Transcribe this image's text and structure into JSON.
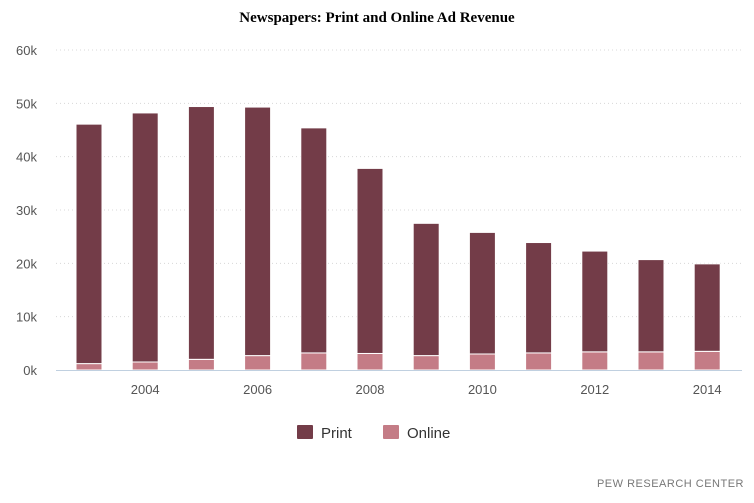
{
  "chart_data": {
    "type": "bar",
    "stacked": true,
    "title": "Newspapers: Print and Online Ad Revenue",
    "x": [
      2003,
      2004,
      2005,
      2006,
      2007,
      2008,
      2009,
      2010,
      2011,
      2012,
      2013,
      2014
    ],
    "x_tick_labels": [
      "2004",
      "2006",
      "2008",
      "2010",
      "2012",
      "2014"
    ],
    "y_tick_labels": [
      "0k",
      "10k",
      "20k",
      "30k",
      "40k",
      "50k",
      "60k"
    ],
    "ylim": [
      0,
      60000
    ],
    "grid": true,
    "legend_position": "bottom-center",
    "series": [
      {
        "name": "Print",
        "color": "#733c48",
        "values": [
          44900,
          46700,
          47400,
          46600,
          42200,
          34700,
          24800,
          22800,
          20700,
          18900,
          17300,
          16400
        ]
      },
      {
        "name": "Online",
        "color": "#c47c86",
        "values": [
          1200,
          1500,
          2000,
          2700,
          3200,
          3100,
          2700,
          3000,
          3200,
          3400,
          3400,
          3500
        ]
      }
    ]
  },
  "source": "PEW RESEARCH CENTER"
}
